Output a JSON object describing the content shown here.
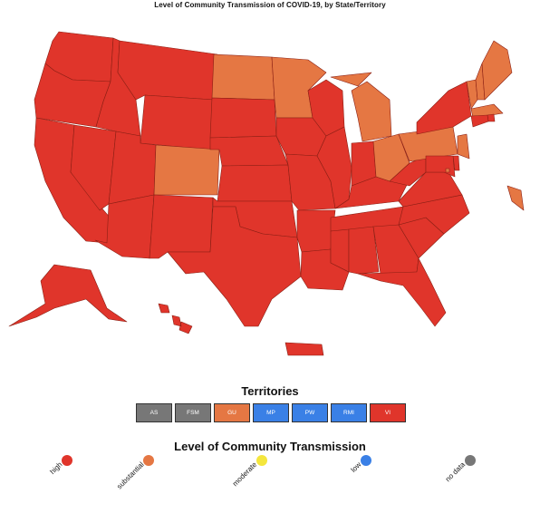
{
  "title": "Level of Community Transmission of COVID-19, by State/Territory",
  "colors": {
    "high": "#e0352b",
    "substantial": "#e57743",
    "moderate": "#f4e63d",
    "low": "#3a80e6",
    "no_data": "#777777"
  },
  "territories": {
    "title": "Territories",
    "items": [
      {
        "label": "AS",
        "level": "no_data"
      },
      {
        "label": "FSM",
        "level": "no_data"
      },
      {
        "label": "GU",
        "level": "substantial"
      },
      {
        "label": "MP",
        "level": "low"
      },
      {
        "label": "PW",
        "level": "low"
      },
      {
        "label": "RMI",
        "level": "low"
      },
      {
        "label": "VI",
        "level": "high"
      }
    ]
  },
  "legend": {
    "title": "Level of Community Transmission",
    "items": [
      {
        "label": "high",
        "level": "high"
      },
      {
        "label": "substantial",
        "level": "substantial"
      },
      {
        "label": "moderate",
        "level": "moderate"
      },
      {
        "label": "low",
        "level": "low"
      },
      {
        "label": "no data",
        "level": "no_data"
      }
    ]
  },
  "states": {
    "WA": "high",
    "OR": "high",
    "CA": "high",
    "NV": "high",
    "ID": "high",
    "MT": "high",
    "WY": "high",
    "UT": "high",
    "AZ": "high",
    "CO": "substantial",
    "NM": "high",
    "ND": "substantial",
    "SD": "high",
    "NE": "high",
    "KS": "high",
    "OK": "high",
    "TX": "high",
    "MN": "substantial",
    "IA": "high",
    "MO": "high",
    "AR": "high",
    "LA": "high",
    "WI": "high",
    "IL": "high",
    "MI": "substantial",
    "IN": "high",
    "OH": "substantial",
    "KY": "high",
    "TN": "high",
    "MS": "high",
    "AL": "high",
    "GA": "high",
    "FL": "high",
    "SC": "high",
    "NC": "high",
    "VA": "high",
    "WV": "high",
    "PA": "substantial",
    "NY": "high",
    "VT": "substantial",
    "NH": "substantial",
    "ME": "substantial",
    "MA": "substantial",
    "RI": "high",
    "CT": "high",
    "NJ": "substantial",
    "DE": "high",
    "MD": "high",
    "DC": "substantial",
    "AK": "high",
    "HI": "high",
    "PR": "high",
    "GU_map": "substantial"
  }
}
